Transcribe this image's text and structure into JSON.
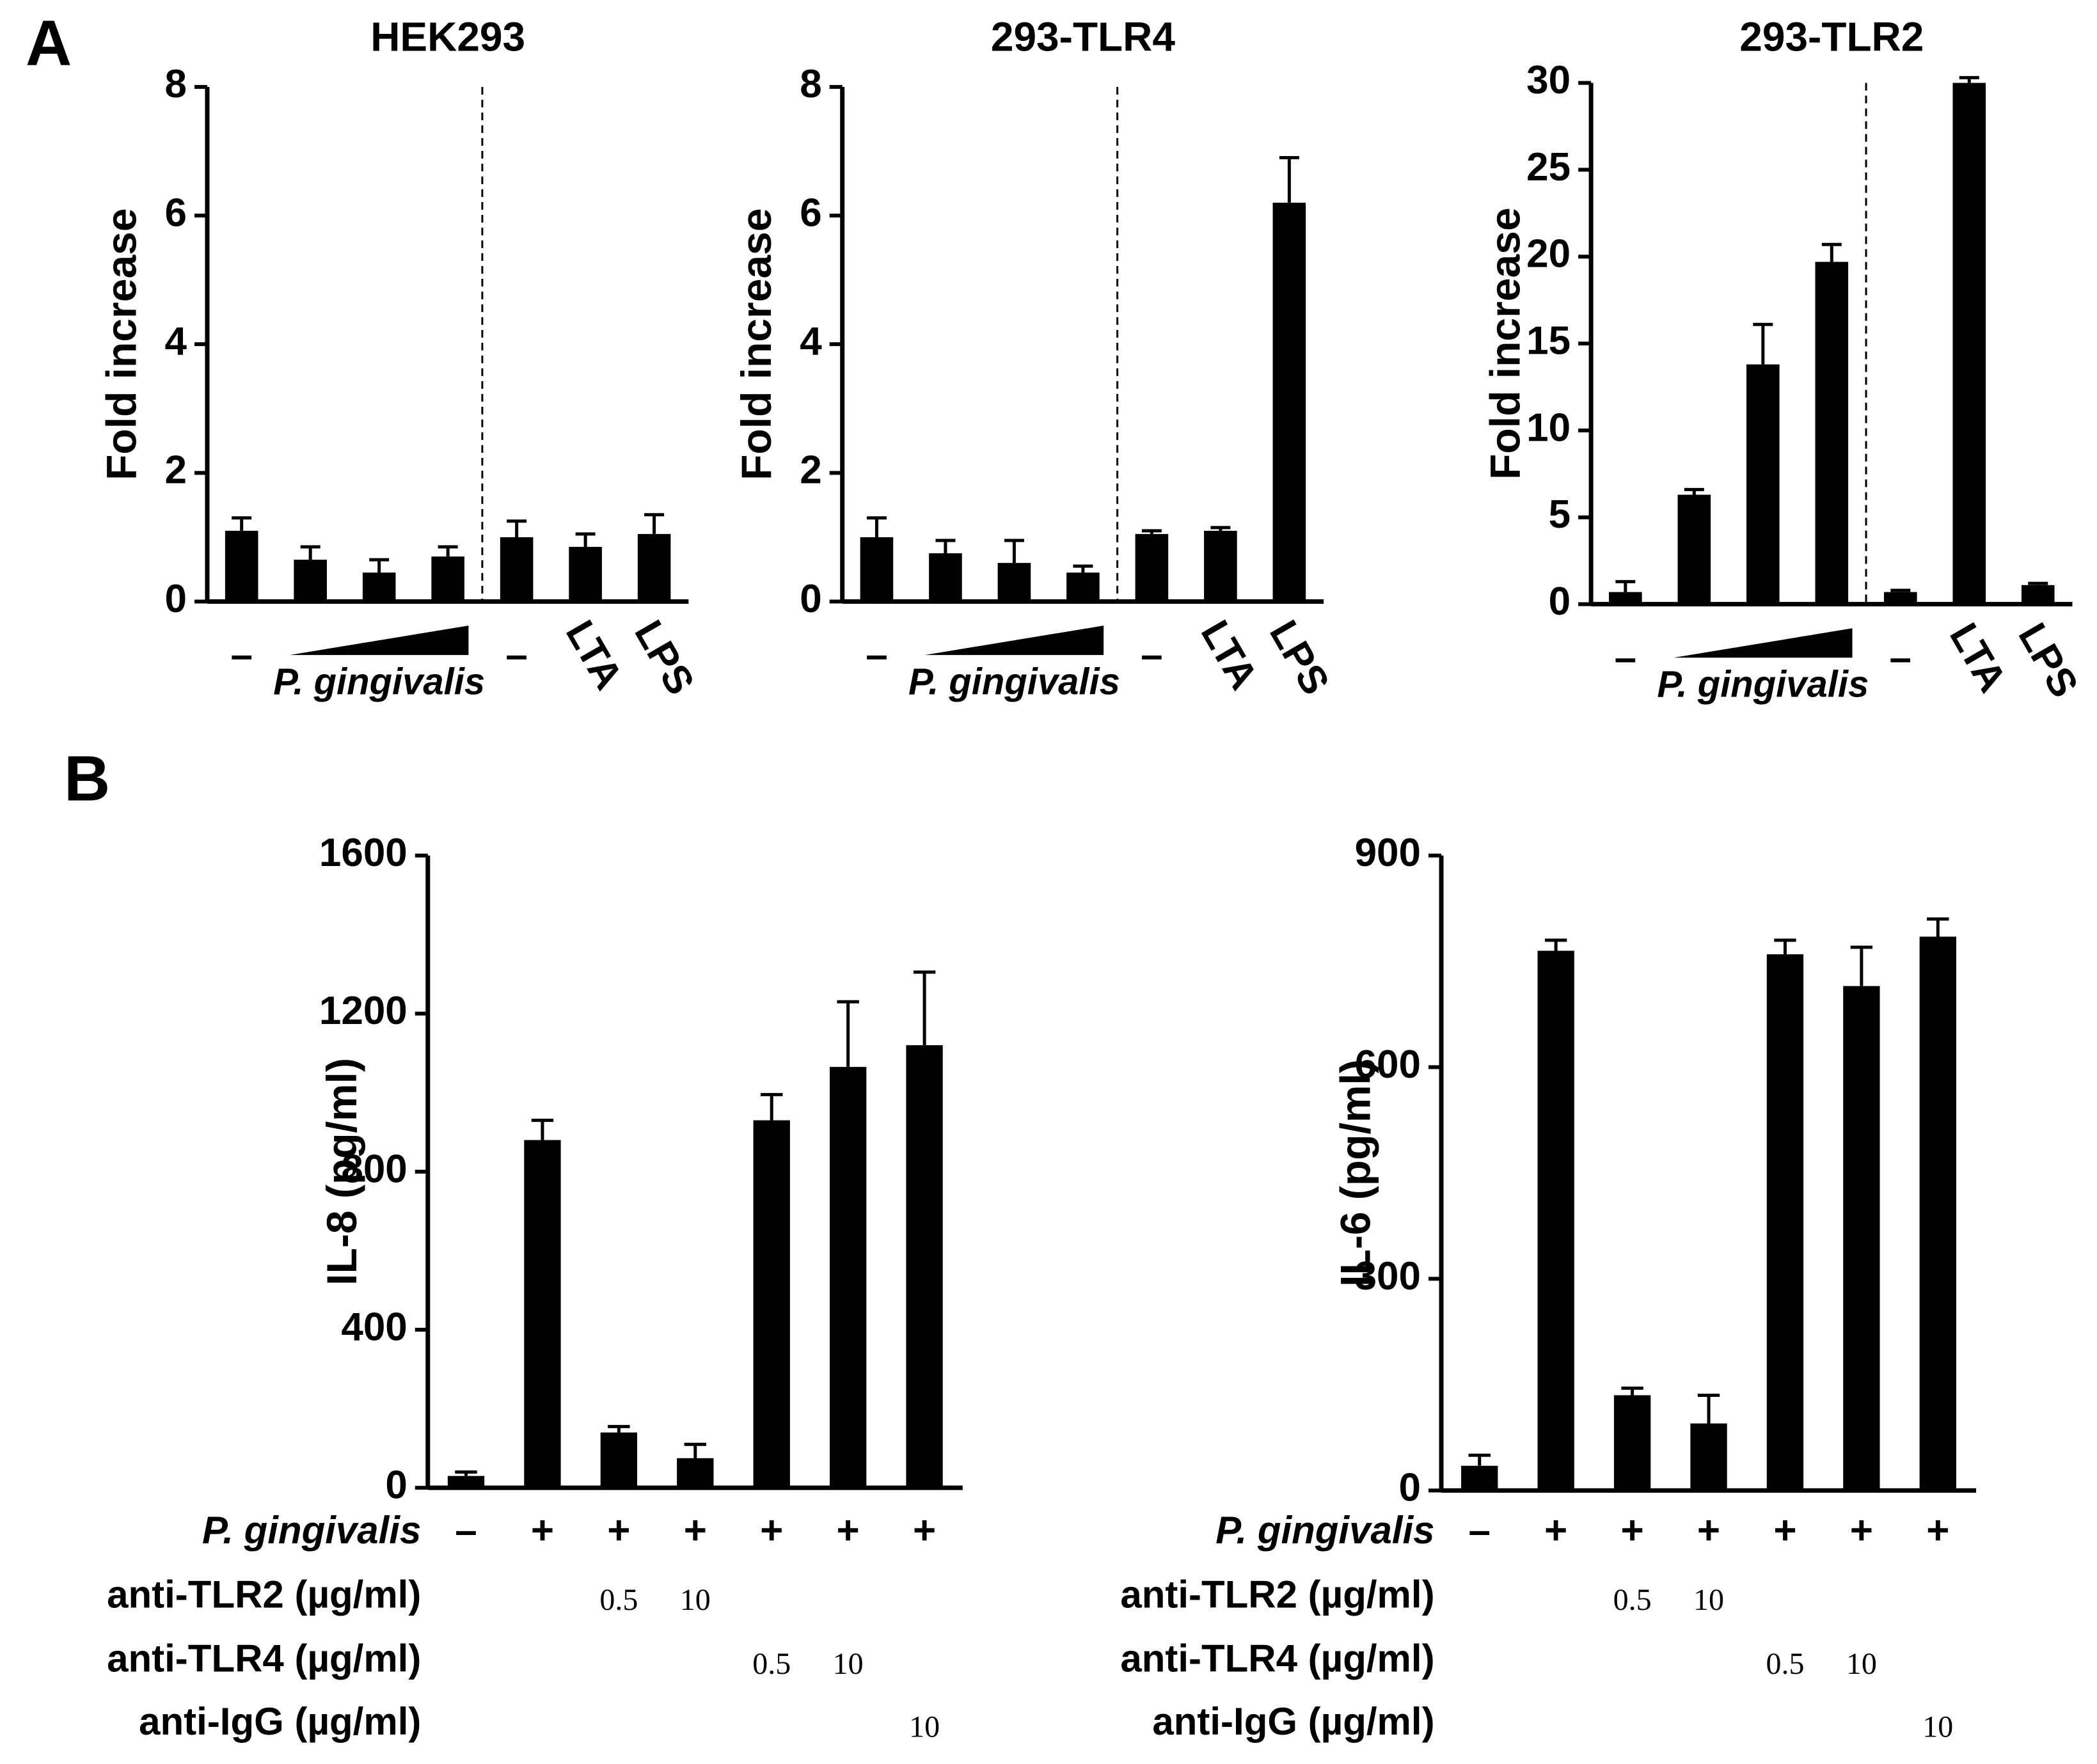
{
  "panels": [
    "A",
    "B"
  ],
  "chart_data": [
    {
      "type": "bar",
      "title": "HEK293",
      "ylabel": "Fold increase",
      "categories": [
        "–",
        null,
        null,
        null,
        "–",
        "LTA",
        "LPS"
      ],
      "group_label": "P. gingivalis",
      "values": [
        1.1,
        0.65,
        0.45,
        0.7,
        1.0,
        0.85,
        1.05
      ],
      "errors": [
        0.2,
        0.2,
        0.2,
        0.15,
        0.25,
        0.2,
        0.3
      ],
      "color": "#000000",
      "ylim": [
        0,
        8
      ],
      "yticks": [
        0,
        2,
        4,
        6,
        8
      ]
    },
    {
      "type": "bar",
      "title": "293-TLR4",
      "ylabel": "Fold increase",
      "categories": [
        "–",
        null,
        null,
        null,
        "–",
        "LTA",
        "LPS"
      ],
      "group_label": "P. gingivalis",
      "values": [
        1.0,
        0.75,
        0.6,
        0.45,
        1.05,
        1.1,
        6.2
      ],
      "errors": [
        0.3,
        0.2,
        0.35,
        0.1,
        0.05,
        0.05,
        0.7
      ],
      "color": "#000000",
      "ylim": [
        0,
        8
      ],
      "yticks": [
        0,
        2,
        4,
        6,
        8
      ]
    },
    {
      "type": "bar",
      "title": "293-TLR2",
      "ylabel": "Fold increase",
      "categories": [
        "–",
        null,
        null,
        null,
        "–",
        "LTA",
        "LPS"
      ],
      "group_label": "P. gingivalis",
      "values": [
        0.7,
        6.3,
        13.8,
        19.7,
        0.7,
        30,
        1.1
      ],
      "errors": [
        0.6,
        0.3,
        2.3,
        1.0,
        0.1,
        0.3,
        0.1
      ],
      "color": "#000000",
      "ylim": [
        0,
        30
      ],
      "yticks": [
        0,
        5,
        10,
        15,
        20,
        25,
        30
      ]
    },
    {
      "type": "bar",
      "ylabel": "IL-8 (pg/ml)",
      "values": [
        30,
        880,
        140,
        75,
        930,
        1065,
        1120
      ],
      "errors": [
        10,
        50,
        15,
        35,
        65,
        165,
        185
      ],
      "color": "#000000",
      "ylim": [
        0,
        1600
      ],
      "yticks": [
        0,
        400,
        800,
        1200,
        1600
      ],
      "rows": [
        {
          "label": "P. gingivalis",
          "values": [
            "–",
            "+",
            "+",
            "+",
            "+",
            "+",
            "+"
          ]
        },
        {
          "label": "anti-TLR2 (µg/ml)",
          "values": [
            null,
            null,
            0.5,
            10,
            null,
            null,
            null
          ]
        },
        {
          "label": "anti-TLR4 (µg/ml)",
          "values": [
            null,
            null,
            null,
            null,
            0.5,
            10,
            null
          ]
        },
        {
          "label": "anti-IgG (µg/ml)",
          "values": [
            null,
            null,
            null,
            null,
            null,
            null,
            10
          ]
        }
      ]
    },
    {
      "type": "bar",
      "ylabel": "IL-6 (pg/ml)",
      "values": [
        35,
        765,
        135,
        95,
        760,
        715,
        785
      ],
      "errors": [
        15,
        15,
        10,
        40,
        20,
        55,
        25
      ],
      "color": "#000000",
      "ylim": [
        0,
        900
      ],
      "yticks": [
        0,
        300,
        600,
        900
      ],
      "rows": [
        {
          "label": "P. gingivalis",
          "values": [
            "–",
            "+",
            "+",
            "+",
            "+",
            "+",
            "+"
          ]
        },
        {
          "label": "anti-TLR2 (µg/ml)",
          "values": [
            null,
            null,
            0.5,
            10,
            null,
            null,
            null
          ]
        },
        {
          "label": "anti-TLR4 (µg/ml)",
          "values": [
            null,
            null,
            null,
            null,
            0.5,
            10,
            null
          ]
        },
        {
          "label": "anti-IgG (µg/ml)",
          "values": [
            null,
            null,
            null,
            null,
            null,
            null,
            10
          ]
        }
      ]
    }
  ]
}
